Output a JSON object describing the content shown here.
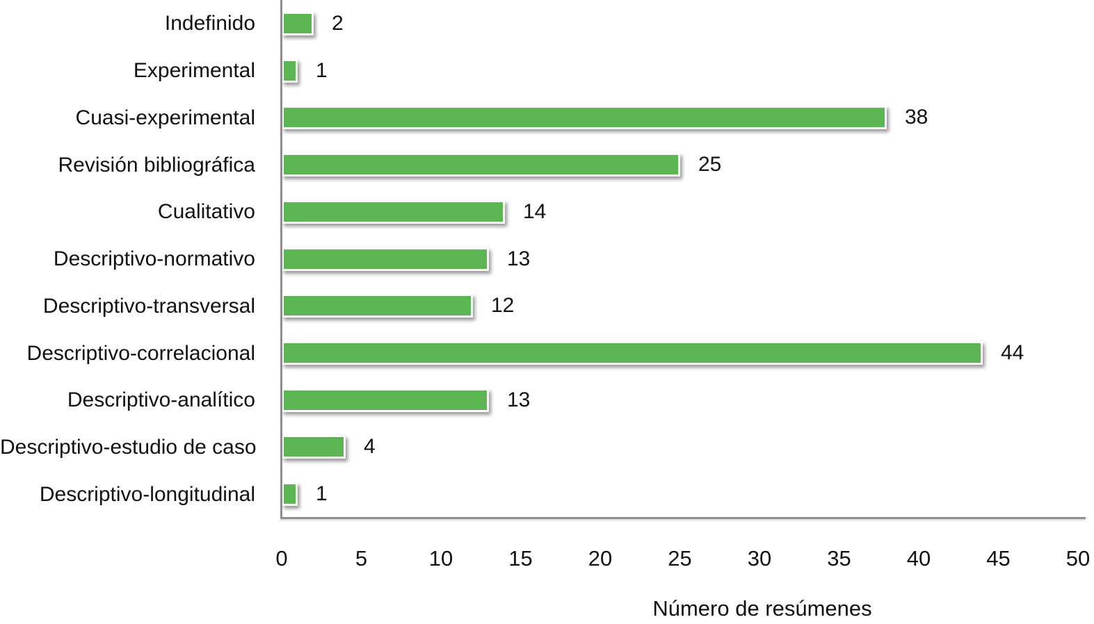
{
  "chart_data": {
    "type": "bar",
    "orientation": "horizontal",
    "categories": [
      "Indefinido",
      "Experimental",
      "Cuasi-experimental",
      "Revisión bibliográfica",
      "Cualitativo",
      "Descriptivo-normativo",
      "Descriptivo-transversal",
      "Descriptivo-correlacional",
      "Descriptivo-analítico",
      "Descriptivo-estudio de caso",
      "Descriptivo-longitudinal"
    ],
    "values": [
      2,
      1,
      38,
      25,
      14,
      13,
      12,
      44,
      13,
      4,
      1
    ],
    "xlabel": "Número de resúmenes",
    "xlim": [
      0,
      50
    ],
    "xticks": [
      0,
      5,
      10,
      15,
      20,
      25,
      30,
      35,
      40,
      45,
      50
    ],
    "grid": false,
    "legend": false,
    "value_labels": true,
    "bar_color": "#5ab552",
    "bar_border_color": "#ffffff",
    "axis_color": "#8f8f8f",
    "text_color": "#111111"
  }
}
